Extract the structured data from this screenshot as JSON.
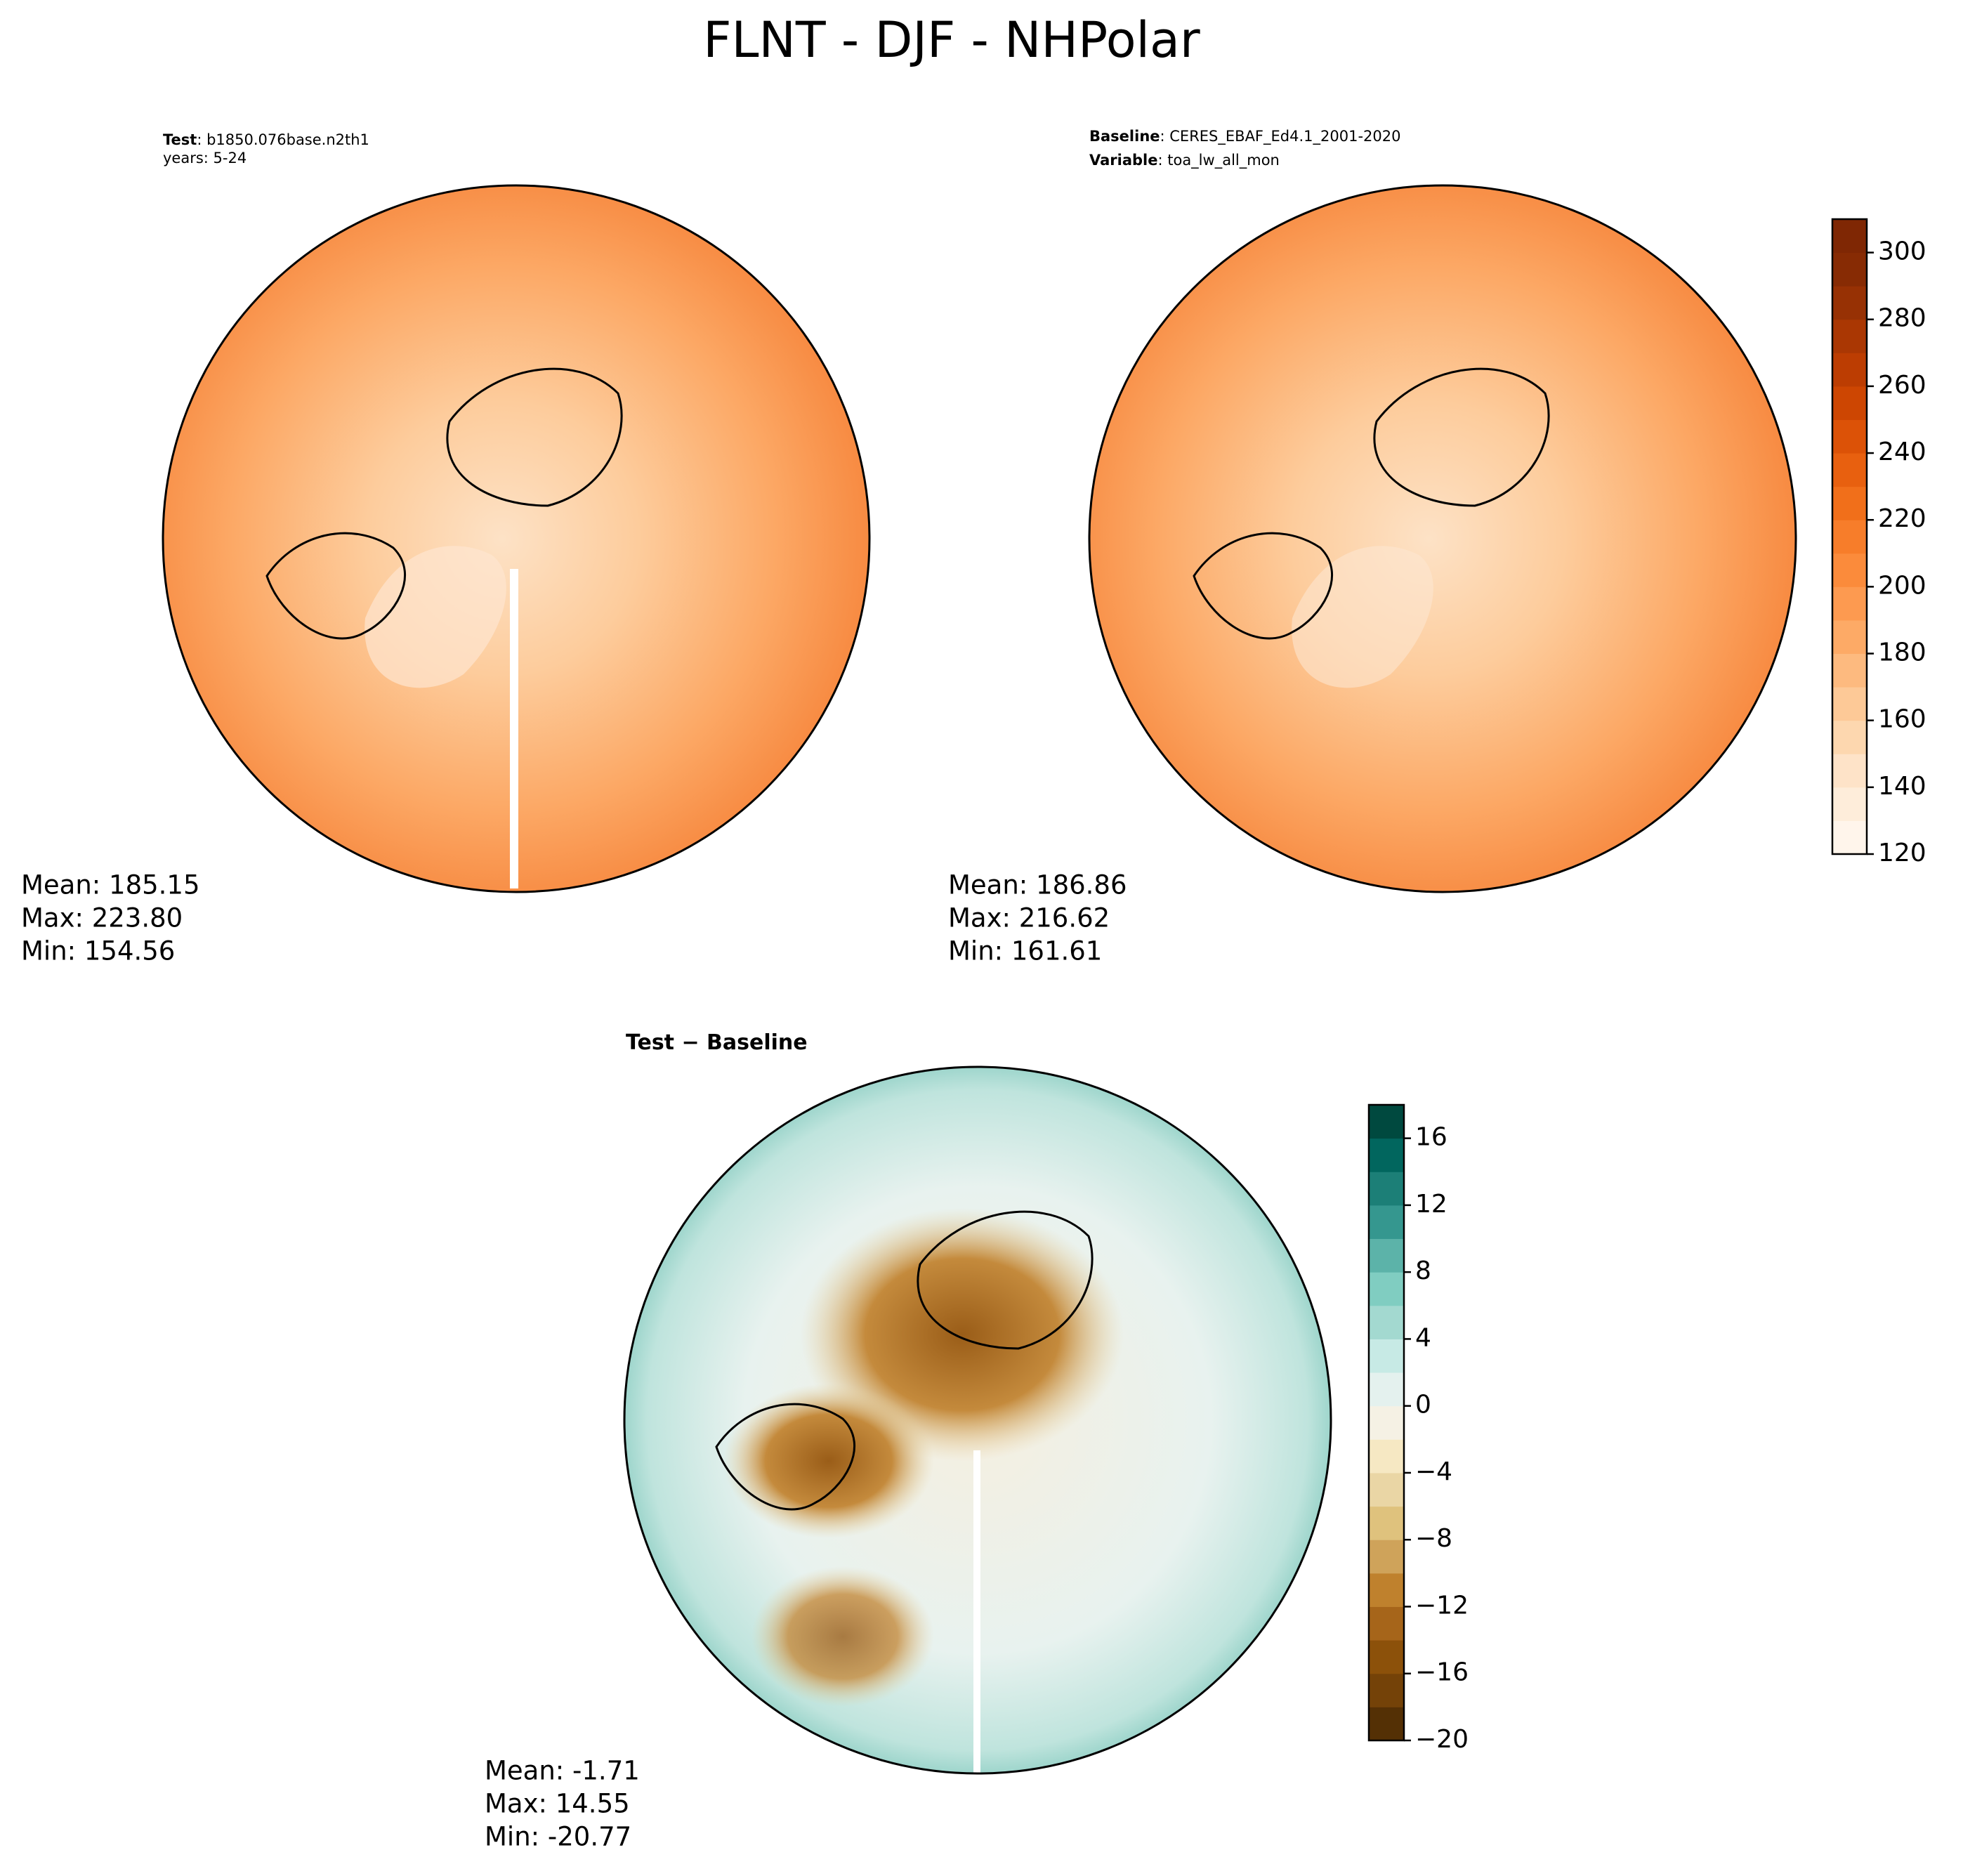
{
  "title": "FLNT - DJF - NHPolar",
  "panels": [
    {
      "header": [
        {
          "key": "Test",
          "text": ": b1850.076base.n2th1"
        },
        {
          "text": "years: 5-24"
        }
      ],
      "stats": [
        "Mean: 185.15",
        "Max: 223.80",
        "Min: 154.56"
      ]
    },
    {
      "header": [
        {
          "key": "Baseline",
          "text": ": CERES_EBAF_Ed4.1_2001-2020"
        },
        {
          "key": "Variable",
          "text": ": toa_lw_all_mon"
        }
      ],
      "stats": [
        "Mean: 186.86",
        "Max: 216.62",
        "Min: 161.61"
      ]
    },
    {
      "header": [
        {
          "key": "Test − Baseline"
        }
      ],
      "stats": [
        "Mean: -1.71",
        "Max: 14.55",
        "Min: -20.77"
      ]
    }
  ],
  "colorbars": [
    {
      "lim": [
        120,
        310
      ],
      "ticks": [
        120,
        140,
        160,
        180,
        200,
        220,
        240,
        260,
        280,
        300
      ],
      "colors": [
        "#fff5eb",
        "#feedda",
        "#fee3c8",
        "#fdd7af",
        "#fdc997",
        "#fdba7f",
        "#fdaa66",
        "#fd9a50",
        "#fb8b3b",
        "#f77d2a",
        "#f16f1a",
        "#e8600f",
        "#dc5207",
        "#cd4602",
        "#bc3d02",
        "#aa3703",
        "#973104",
        "#872b04",
        "#7f2704"
      ]
    },
    {
      "lim": [
        -20,
        18
      ],
      "ticks": [
        {
          "value": -20,
          "label": "−20"
        },
        {
          "value": -16,
          "label": "−16"
        },
        {
          "value": -12,
          "label": "−12"
        },
        {
          "value": -8,
          "label": "−8"
        },
        {
          "value": -4,
          "label": "−4"
        },
        0,
        4,
        8,
        12,
        16
      ],
      "colors": [
        "#543005",
        "#744208",
        "#8c510a",
        "#a6651a",
        "#bf812d",
        "#cfa35a",
        "#dfc27d",
        "#ead6a5",
        "#f6e8c3",
        "#f5f1e4",
        "#e4f1ee",
        "#c7eae5",
        "#a3d9d0",
        "#80cdc1",
        "#5cb3a9",
        "#35978f",
        "#1c7f77",
        "#01665e",
        "#00493f"
      ]
    }
  ]
}
